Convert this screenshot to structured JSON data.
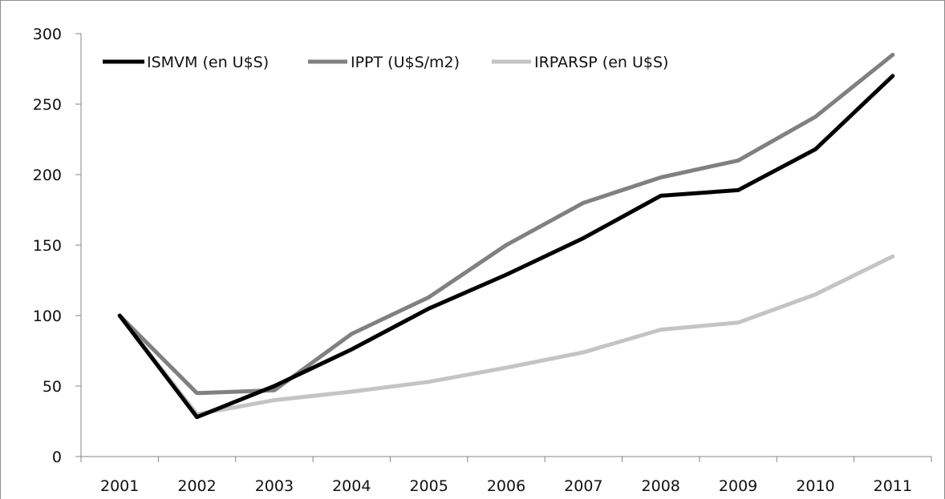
{
  "chart_data": {
    "type": "line",
    "title": "",
    "xlabel": "",
    "ylabel": "",
    "categories": [
      "2001",
      "2002",
      "2003",
      "2004",
      "2005",
      "2006",
      "2007",
      "2008",
      "2009",
      "2010",
      "2011"
    ],
    "ylim": [
      0,
      300
    ],
    "yticks": [
      "0",
      "50",
      "100",
      "150",
      "200",
      "250",
      "300"
    ],
    "grid": false,
    "legend_position": "top-left",
    "series": [
      {
        "name": "ISMVM (en U$S)",
        "color": "#000000",
        "values": [
          100,
          28,
          50,
          76,
          105,
          129,
          155,
          185,
          189,
          218,
          270
        ]
      },
      {
        "name": "IPPT (U$S/m2)",
        "color": "#808080",
        "values": [
          100,
          45,
          47,
          87,
          113,
          150,
          180,
          198,
          210,
          241,
          285
        ]
      },
      {
        "name": "IRPARSP (en U$S)",
        "color": "#c4c4c4",
        "values": [
          100,
          30,
          40,
          46,
          53,
          63,
          74,
          90,
          95,
          115,
          142
        ]
      }
    ]
  }
}
